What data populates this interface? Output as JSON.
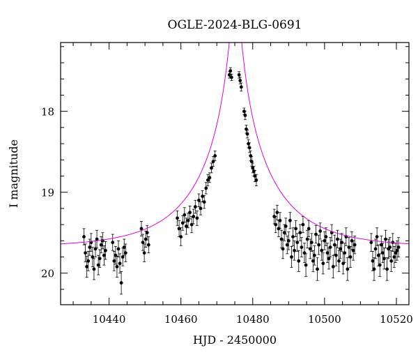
{
  "chart_data": {
    "type": "scatter",
    "title": "OGLE-2024-BLG-0691",
    "xlabel": "HJD - 2450000",
    "ylabel": "I magnitude",
    "xlim": [
      10426.5,
      10523.5
    ],
    "ylim": [
      20.39,
      17.15
    ],
    "y_inverted": true,
    "xticks_major": [
      10440,
      10460,
      10480,
      10500,
      10520
    ],
    "xticks_minor_step": 5,
    "yticks_major": [
      18,
      19,
      20
    ],
    "yticks_minor_step": 0.2,
    "model_color": "#e000e0",
    "point_color": "#000000",
    "model": {
      "t0": 10475.2,
      "tE": 21,
      "u0": 0.052,
      "baseline_mag": 19.68
    },
    "series": [
      {
        "x": [
          10433.0,
          10433.4,
          10433.8,
          10434.2,
          10434.6,
          10435.0,
          10435.4,
          10435.8,
          10436.2,
          10436.6,
          10437.0,
          10437.4,
          10437.8,
          10438.2,
          10438.6,
          10439.0,
          10441.0,
          10441.4,
          10441.8,
          10442.2,
          10442.6,
          10443.0,
          10443.4,
          10443.8,
          10444.2,
          10444.6,
          10449.0,
          10449.4,
          10449.8,
          10450.2,
          10450.6,
          10451.0,
          10459.0,
          10459.5,
          10460.0,
          10460.5,
          10461.0,
          10461.5,
          10462.0,
          10462.5,
          10463.0,
          10463.5,
          10464.0,
          10464.5,
          10465.0,
          10465.5,
          10466.0,
          10466.5,
          10467.0,
          10467.5,
          10468.0,
          10468.5,
          10469.0,
          10469.5,
          10473.5,
          10473.8,
          10474.1,
          10476.2,
          10476.5,
          10476.8,
          10477.6,
          10477.9,
          10478.2,
          10478.5,
          10478.8,
          10479.1,
          10479.4,
          10479.7,
          10480.0,
          10480.3,
          10480.6,
          10481.0,
          10486.0,
          10486.4,
          10486.8,
          10487.2,
          10487.6,
          10488.0,
          10488.4,
          10488.8,
          10489.2,
          10489.6,
          10490.0,
          10490.4,
          10490.8,
          10491.2,
          10491.6,
          10492.0,
          10492.4,
          10492.8,
          10493.2,
          10493.6,
          10494.0,
          10494.4,
          10494.8,
          10495.2,
          10495.6,
          10496.0,
          10496.4,
          10496.8,
          10497.2,
          10497.6,
          10498.0,
          10498.4,
          10498.8,
          10499.2,
          10499.6,
          10500.0,
          10500.4,
          10500.8,
          10501.2,
          10501.6,
          10502.0,
          10502.4,
          10502.8,
          10503.2,
          10503.6,
          10504.0,
          10504.4,
          10504.8,
          10505.2,
          10505.6,
          10506.0,
          10506.4,
          10506.8,
          10507.2,
          10507.6,
          10508.0,
          10508.4,
          10513.0,
          10513.4,
          10513.8,
          10514.2,
          10514.6,
          10515.0,
          10515.4,
          10515.8,
          10516.2,
          10516.6,
          10517.0,
          10517.4,
          10517.8,
          10518.2,
          10518.6,
          10519.0,
          10519.4,
          10519.8,
          10520.2,
          10520.6
        ],
        "y": [
          19.55,
          19.75,
          19.92,
          19.85,
          19.68,
          19.62,
          19.8,
          19.95,
          19.7,
          19.58,
          19.9,
          19.82,
          19.65,
          19.6,
          19.78,
          19.72,
          19.62,
          19.85,
          19.78,
          19.92,
          19.7,
          19.88,
          20.12,
          19.8,
          19.68,
          19.75,
          19.45,
          19.62,
          19.75,
          19.58,
          19.5,
          19.65,
          19.32,
          19.45,
          19.55,
          19.38,
          19.28,
          19.42,
          19.35,
          19.25,
          19.4,
          19.3,
          19.18,
          19.32,
          19.1,
          19.2,
          19.05,
          19.12,
          18.95,
          18.85,
          18.82,
          18.7,
          18.62,
          18.55,
          17.55,
          17.5,
          17.58,
          17.55,
          17.62,
          17.7,
          18.0,
          18.05,
          18.22,
          18.28,
          18.4,
          18.45,
          18.55,
          18.62,
          18.7,
          18.74,
          18.8,
          18.85,
          19.3,
          19.4,
          19.25,
          19.45,
          19.35,
          19.58,
          19.7,
          19.5,
          19.42,
          19.65,
          19.6,
          19.35,
          19.8,
          19.55,
          19.72,
          19.45,
          19.62,
          19.85,
          19.5,
          19.68,
          19.4,
          19.75,
          19.9,
          19.58,
          19.45,
          19.7,
          19.62,
          19.85,
          19.78,
          19.52,
          19.95,
          19.65,
          19.48,
          19.72,
          19.88,
          19.6,
          19.55,
          19.75,
          19.82,
          19.68,
          19.5,
          19.92,
          19.65,
          19.78,
          19.58,
          19.85,
          19.7,
          19.62,
          19.88,
          19.75,
          19.55,
          19.95,
          19.68,
          19.8,
          19.6,
          19.72,
          19.65,
          19.62,
          19.85,
          19.95,
          19.7,
          19.55,
          19.78,
          19.9,
          19.65,
          19.75,
          19.82,
          19.58,
          19.95,
          19.7,
          19.68,
          19.85,
          19.62,
          19.8,
          19.75,
          19.72,
          19.68
        ],
        "err": [
          0.1,
          0.11,
          0.13,
          0.12,
          0.1,
          0.11,
          0.12,
          0.13,
          0.1,
          0.11,
          0.12,
          0.11,
          0.1,
          0.1,
          0.12,
          0.11,
          0.1,
          0.12,
          0.11,
          0.13,
          0.1,
          0.12,
          0.14,
          0.11,
          0.1,
          0.11,
          0.09,
          0.1,
          0.11,
          0.1,
          0.09,
          0.1,
          0.09,
          0.1,
          0.11,
          0.09,
          0.09,
          0.1,
          0.09,
          0.08,
          0.1,
          0.09,
          0.08,
          0.09,
          0.08,
          0.08,
          0.07,
          0.08,
          0.07,
          0.07,
          0.06,
          0.06,
          0.06,
          0.06,
          0.04,
          0.04,
          0.04,
          0.04,
          0.04,
          0.05,
          0.04,
          0.05,
          0.05,
          0.05,
          0.05,
          0.06,
          0.06,
          0.06,
          0.06,
          0.06,
          0.07,
          0.07,
          0.09,
          0.1,
          0.09,
          0.1,
          0.1,
          0.11,
          0.12,
          0.1,
          0.1,
          0.11,
          0.11,
          0.1,
          0.13,
          0.11,
          0.12,
          0.1,
          0.11,
          0.13,
          0.1,
          0.12,
          0.1,
          0.12,
          0.14,
          0.11,
          0.1,
          0.12,
          0.11,
          0.13,
          0.12,
          0.11,
          0.14,
          0.12,
          0.1,
          0.12,
          0.13,
          0.11,
          0.11,
          0.12,
          0.13,
          0.12,
          0.1,
          0.14,
          0.12,
          0.13,
          0.11,
          0.13,
          0.12,
          0.11,
          0.13,
          0.12,
          0.11,
          0.14,
          0.12,
          0.13,
          0.11,
          0.12,
          0.11,
          0.11,
          0.12,
          0.14,
          0.12,
          0.11,
          0.13,
          0.14,
          0.11,
          0.12,
          0.13,
          0.11,
          0.14,
          0.12,
          0.12,
          0.13,
          0.11,
          0.13,
          0.12,
          0.12,
          0.12
        ]
      }
    ]
  }
}
